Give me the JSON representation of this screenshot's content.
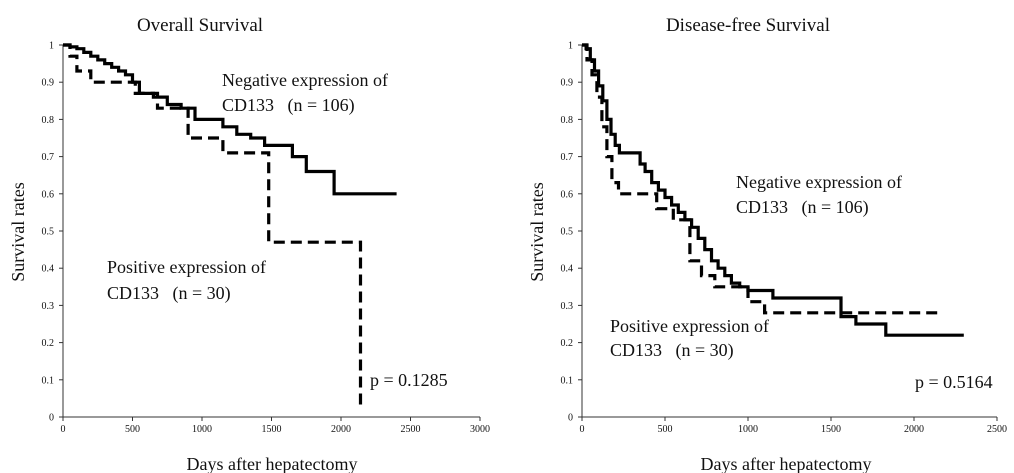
{
  "chart_data": [
    {
      "type": "line",
      "title": "Overall Survival",
      "xlabel": "Days after hepatectomy",
      "ylabel": "Survival rates",
      "xlim": [
        0,
        3000
      ],
      "ylim": [
        0,
        1
      ],
      "xticks": [
        "0",
        "500",
        "1000",
        "1500",
        "2000",
        "2500",
        "3000"
      ],
      "yticks": [
        "0",
        "0.1",
        "0.2",
        "0.3",
        "0.4",
        "0.5",
        "0.6",
        "0.7",
        "0.8",
        "0.9",
        "1"
      ],
      "grid": false,
      "series": [
        {
          "style": "solid",
          "label_line1": "Negative expression of",
          "label_line2": "CD133   (n = 106)",
          "x": [
            0,
            50,
            100,
            150,
            200,
            250,
            300,
            350,
            400,
            450,
            500,
            550,
            650,
            750,
            850,
            950,
            1000,
            1050,
            1150,
            1250,
            1350,
            1450,
            1550,
            1650,
            1750,
            1950,
            2400
          ],
          "y": [
            1.0,
            0.995,
            0.99,
            0.98,
            0.97,
            0.96,
            0.95,
            0.94,
            0.93,
            0.92,
            0.9,
            0.87,
            0.86,
            0.84,
            0.83,
            0.8,
            0.8,
            0.8,
            0.78,
            0.76,
            0.75,
            0.73,
            0.73,
            0.7,
            0.66,
            0.6,
            0.6
          ]
        },
        {
          "style": "dashed",
          "label_line1": "Positive expression of",
          "label_line2": "CD133   (n = 30)",
          "x": [
            0,
            50,
            100,
            200,
            450,
            520,
            680,
            900,
            1150,
            1450,
            1480,
            2130,
            2140
          ],
          "y": [
            1.0,
            0.97,
            0.93,
            0.9,
            0.9,
            0.87,
            0.83,
            0.75,
            0.71,
            0.71,
            0.47,
            0.47,
            0.02
          ]
        }
      ],
      "annotation": "p = 0.1285"
    },
    {
      "type": "line",
      "title": "Disease-free Survival",
      "xlabel": "Days after hepatectomy",
      "ylabel": "Survival rates",
      "xlim": [
        0,
        2500
      ],
      "ylim": [
        0,
        1
      ],
      "xticks": [
        "0",
        "500",
        "1000",
        "1500",
        "2000",
        "2500"
      ],
      "yticks": [
        "0",
        "0.1",
        "0.2",
        "0.3",
        "0.4",
        "0.5",
        "0.6",
        "0.7",
        "0.8",
        "0.9",
        "1"
      ],
      "grid": false,
      "series": [
        {
          "style": "solid",
          "label_line1": "Negative expression of",
          "label_line2": "CD133   (n = 106)",
          "x": [
            0,
            25,
            50,
            75,
            100,
            125,
            150,
            175,
            200,
            225,
            320,
            350,
            380,
            420,
            460,
            500,
            540,
            580,
            620,
            660,
            700,
            740,
            780,
            820,
            860,
            900,
            950,
            1000,
            1050,
            1150,
            1400,
            1560,
            1650,
            1830,
            2300
          ],
          "y": [
            1.0,
            0.99,
            0.96,
            0.93,
            0.89,
            0.85,
            0.8,
            0.76,
            0.73,
            0.71,
            0.71,
            0.68,
            0.66,
            0.63,
            0.61,
            0.59,
            0.57,
            0.55,
            0.53,
            0.51,
            0.48,
            0.45,
            0.42,
            0.4,
            0.38,
            0.36,
            0.35,
            0.34,
            0.34,
            0.32,
            0.32,
            0.27,
            0.25,
            0.22,
            0.22
          ]
        },
        {
          "style": "dashed",
          "label_line1": "Positive expression of",
          "label_line2": "CD133   (n = 30)",
          "x": [
            0,
            30,
            60,
            90,
            120,
            150,
            180,
            220,
            400,
            450,
            550,
            650,
            720,
            800,
            950,
            1000,
            1050,
            1100,
            1650,
            2150
          ],
          "y": [
            1.0,
            0.96,
            0.92,
            0.86,
            0.78,
            0.7,
            0.63,
            0.6,
            0.6,
            0.56,
            0.53,
            0.42,
            0.38,
            0.35,
            0.35,
            0.31,
            0.31,
            0.28,
            0.28,
            0.28
          ]
        }
      ],
      "annotation": "p = 0.5164"
    }
  ]
}
